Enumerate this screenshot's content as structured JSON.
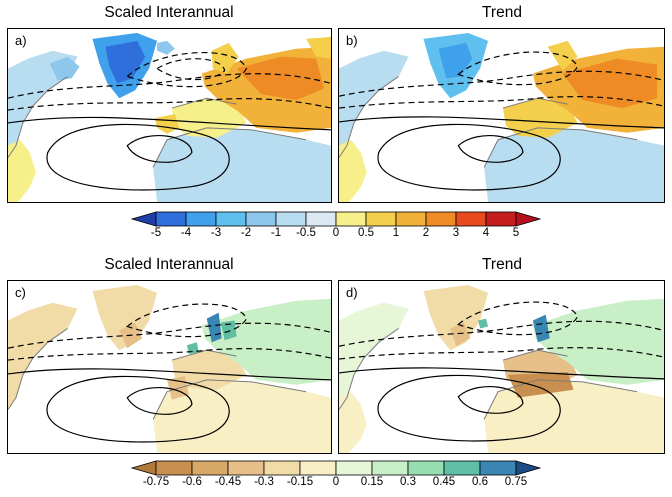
{
  "panels": [
    {
      "title": "Scaled Interannual",
      "label": "a)"
    },
    {
      "title": "Trend",
      "label": "b)"
    },
    {
      "title": "Scaled Interannual",
      "label": "c)"
    },
    {
      "title": "Trend",
      "label": "d)"
    }
  ],
  "colorbars": [
    {
      "ticks": [
        "-5",
        "-4",
        "-3",
        "-2",
        "-1",
        "-0.5",
        "0",
        "0.5",
        "1",
        "2",
        "3",
        "4",
        "5"
      ],
      "colors": [
        "#1f3ea8",
        "#2e6fdc",
        "#3fa0ec",
        "#5fc0f0",
        "#8dc8ec",
        "#b8dcf0",
        "#dde9f2",
        "#f7ef8a",
        "#f3cf4b",
        "#f2b23a",
        "#ef8b24",
        "#e8491f",
        "#c51d1d",
        "#b40f1b"
      ]
    },
    {
      "ticks": [
        "-0.75",
        "-0.6",
        "-0.45",
        "-0.3",
        "-0.15",
        "0",
        "0.15",
        "0.3",
        "0.45",
        "0.6",
        "0.75"
      ],
      "colors": [
        "#b07a3a",
        "#c88f4f",
        "#d8a866",
        "#e6c088",
        "#f1dca8",
        "#f8efc4",
        "#e7f6d6",
        "#c8efc6",
        "#96ddb0",
        "#5fbea4",
        "#3a86b2",
        "#1d4b86"
      ]
    }
  ]
}
